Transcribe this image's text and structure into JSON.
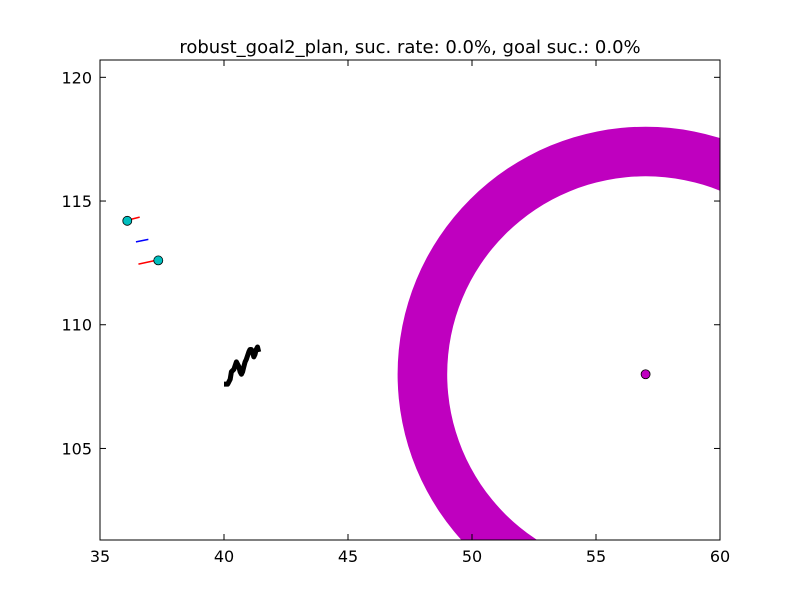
{
  "chart_data": {
    "type": "scatter",
    "title": "robust_goal2_plan, suc. rate: 0.0%, goal suc.: 0.0%",
    "xlabel": "",
    "ylabel": "",
    "xlim": [
      35,
      60
    ],
    "ylim": [
      101.3,
      120.7
    ],
    "xticks": [
      35,
      40,
      45,
      50,
      55,
      60
    ],
    "yticks": [
      105,
      110,
      115,
      120
    ],
    "grid": false,
    "ring": {
      "center": [
        57.0,
        108.0
      ],
      "inner_radius": 8.0,
      "outer_radius": 10.0,
      "color": "#bf00bf"
    },
    "goal_point": {
      "x": 57.0,
      "y": 108.0,
      "color": "#bf00bf"
    },
    "agents": [
      {
        "x": 36.1,
        "y": 114.2,
        "color": "#00bfbf"
      },
      {
        "x": 37.35,
        "y": 112.6,
        "color": "#00bfbf"
      }
    ],
    "segments": [
      {
        "x": [
          36.2,
          36.6
        ],
        "y": [
          114.25,
          114.35
        ],
        "color": "#ff0000"
      },
      {
        "x": [
          36.45,
          36.95
        ],
        "y": [
          113.35,
          113.45
        ],
        "color": "#0000ff"
      },
      {
        "x": [
          36.55,
          37.25
        ],
        "y": [
          112.45,
          112.6
        ],
        "color": "#ff0000"
      }
    ],
    "trajectory": {
      "color": "#000000",
      "x": [
        40.0,
        40.15,
        40.25,
        40.3,
        40.4,
        40.5,
        40.55,
        40.6,
        40.65,
        40.7,
        40.75,
        40.8,
        40.85,
        40.9,
        41.0,
        41.05,
        41.1,
        41.15,
        41.2,
        41.25,
        41.3,
        41.35,
        41.4
      ],
      "y": [
        107.6,
        107.6,
        107.8,
        108.1,
        108.2,
        108.5,
        108.4,
        108.3,
        108.1,
        108.0,
        108.1,
        108.3,
        108.5,
        108.6,
        108.9,
        109.0,
        109.0,
        108.9,
        108.7,
        108.8,
        109.0,
        109.1,
        108.9
      ]
    }
  }
}
